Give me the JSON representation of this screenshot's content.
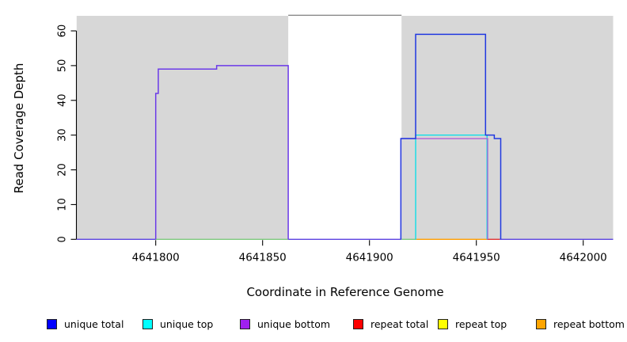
{
  "figure": {
    "x_axis_title": "Coordinate in Reference Genome",
    "y_axis_title": "Read Coverage Depth"
  },
  "legend": {
    "items": [
      {
        "label": "unique total",
        "color": "#0000ff"
      },
      {
        "label": "unique top",
        "color": "#00ffff"
      },
      {
        "label": "unique bottom",
        "color": "#a020f0"
      },
      {
        "label": "repeat total",
        "color": "#ff0000"
      },
      {
        "label": "repeat top",
        "color": "#ffff00"
      },
      {
        "label": "repeat bottom",
        "color": "#ffa500"
      }
    ]
  },
  "chart_data": {
    "type": "line",
    "subtype": "step",
    "title": "",
    "xlabel": "Coordinate in Reference Genome",
    "ylabel": "Read Coverage Depth",
    "xlim": [
      4641763,
      4642014
    ],
    "ylim": [
      0,
      64
    ],
    "x_ticks": [
      4641800,
      4641850,
      4641900,
      4641950,
      4642000
    ],
    "x_tick_labels": [
      "4641800",
      "4641850",
      "4641900",
      "4641950",
      "4642000"
    ],
    "y_ticks": [
      0,
      10,
      20,
      30,
      40,
      50,
      60
    ],
    "grid": false,
    "legend_position": "bottom",
    "background_shading": {
      "color": "#d7d7d7",
      "shaded_regions": [
        [
          4641763,
          4641862
        ],
        [
          4641915,
          4642014
        ]
      ],
      "unshaded_region": [
        4641862,
        4641915
      ],
      "unshaded_top_border_color": "#8a8a8a"
    },
    "series": [
      {
        "name": "unique total",
        "color": "#0000ff",
        "points": [
          [
            4641763,
            0
          ],
          [
            4641800,
            0
          ],
          [
            4641800,
            42
          ],
          [
            4641801,
            42
          ],
          [
            4641801,
            49
          ],
          [
            4641828,
            49
          ],
          [
            4641828,
            50
          ],
          [
            4641862,
            50
          ],
          [
            4641862,
            0
          ],
          [
            4641915,
            0
          ],
          [
            4641915,
            29
          ],
          [
            4641922,
            29
          ],
          [
            4641922,
            59
          ],
          [
            4641954,
            59
          ],
          [
            4641954,
            30
          ],
          [
            4641958,
            30
          ],
          [
            4641958,
            29
          ],
          [
            4641961,
            29
          ],
          [
            4641961,
            0
          ],
          [
            4642014,
            0
          ]
        ]
      },
      {
        "name": "unique top",
        "color": "#00ffff",
        "points": [
          [
            4641763,
            0
          ],
          [
            4641922,
            0
          ],
          [
            4641922,
            30
          ],
          [
            4641955,
            30
          ],
          [
            4641955,
            0
          ],
          [
            4642014,
            0
          ]
        ]
      },
      {
        "name": "unique bottom",
        "color": "#a020f0",
        "points": [
          [
            4641763,
            0
          ],
          [
            4641800,
            0
          ],
          [
            4641800,
            42
          ],
          [
            4641801,
            42
          ],
          [
            4641801,
            49
          ],
          [
            4641828,
            49
          ],
          [
            4641828,
            50
          ],
          [
            4641862,
            50
          ],
          [
            4641862,
            0
          ],
          [
            4641915,
            0
          ],
          [
            4641915,
            29
          ],
          [
            4641955,
            29
          ],
          [
            4641955,
            0
          ],
          [
            4642014,
            0
          ]
        ]
      },
      {
        "name": "repeat total",
        "color": "#ff0000",
        "points": [
          [
            4641763,
            0
          ],
          [
            4642014,
            0
          ]
        ]
      },
      {
        "name": "repeat top",
        "color": "#ffff00",
        "points": [
          [
            4641763,
            0
          ],
          [
            4642014,
            0
          ]
        ]
      },
      {
        "name": "repeat bottom",
        "color": "#ffa500",
        "points": [
          [
            4641763,
            0
          ],
          [
            4642014,
            0
          ]
        ]
      }
    ],
    "rendered_paths": [
      {
        "name": "unique-top-right-hump",
        "color": "#00dfe8",
        "width": 1.3,
        "points": [
          [
            4641921.6,
            0
          ],
          [
            4641921.6,
            30
          ],
          [
            4641955,
            30
          ],
          [
            4641955,
            0
          ]
        ]
      },
      {
        "name": "unique-bottom-right-hump",
        "color": "#b05fd6",
        "width": 1.3,
        "points": [
          [
            4641914.7,
            0
          ],
          [
            4641914.7,
            29
          ],
          [
            4641955.3,
            29
          ],
          [
            4641955.3,
            0
          ]
        ]
      },
      {
        "name": "unique-total-right-hump",
        "color": "#2038e0",
        "width": 1.5,
        "points": [
          [
            4641914.7,
            0
          ],
          [
            4641914.7,
            29
          ],
          [
            4641921.6,
            29
          ],
          [
            4641921.6,
            59
          ],
          [
            4641954.3,
            59
          ],
          [
            4641954.3,
            30
          ],
          [
            4641958.4,
            30
          ],
          [
            4641958.4,
            29
          ],
          [
            4641961.4,
            29
          ],
          [
            4641961.4,
            0
          ]
        ]
      },
      {
        "name": "unique-overlap-left-hump",
        "color": "#6b3ae8",
        "width": 1.5,
        "points": [
          [
            4641800,
            0
          ],
          [
            4641800,
            42
          ],
          [
            4641801.2,
            42
          ],
          [
            4641801.2,
            49
          ],
          [
            4641828.5,
            49
          ],
          [
            4641828.5,
            50
          ],
          [
            4641862,
            50
          ],
          [
            4641862,
            0
          ]
        ]
      }
    ],
    "zero_line_segments": [
      {
        "from": 4641763,
        "to": 4641800,
        "color": "#5b43e0"
      },
      {
        "from": 4641800,
        "to": 4641862,
        "color": "#7cc87c"
      },
      {
        "from": 4641862,
        "to": 4641915,
        "color": "#5b43e0"
      },
      {
        "from": 4641915,
        "to": 4641922,
        "color": "#7cc87c"
      },
      {
        "from": 4641922,
        "to": 4641955,
        "color": "#ff9d00"
      },
      {
        "from": 4641955,
        "to": 4641961,
        "color": "#e03232"
      },
      {
        "from": 4641961,
        "to": 4642014,
        "color": "#5b43e0"
      }
    ]
  }
}
